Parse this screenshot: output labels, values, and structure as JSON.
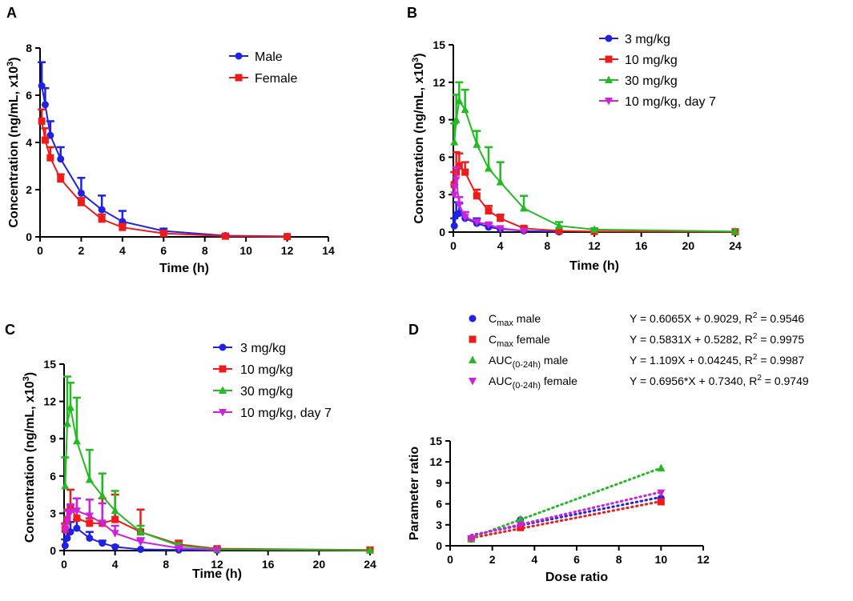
{
  "colors": {
    "blue": "#1f22e6",
    "red": "#ef1b1b",
    "green": "#22bb22",
    "magenta": "#cc22dd",
    "axis": "#000000"
  },
  "chart_data": [
    {
      "type": "line",
      "panel_label": "A",
      "xlabel": "Time (h)",
      "ylabel": "Concentration (ng/mL, x10",
      "ylabel_sup": "3",
      "ylabel_close": ")",
      "xlim": [
        0,
        14
      ],
      "ylim": [
        0,
        8
      ],
      "xticks": [
        0,
        2,
        4,
        6,
        8,
        10,
        12,
        14
      ],
      "yticks": [
        0,
        2,
        4,
        6,
        8
      ],
      "legend": "top-right",
      "series": [
        {
          "name": "Male",
          "color": "#1f22e6",
          "marker": "circle",
          "x": [
            0.083,
            0.25,
            0.5,
            1,
            2,
            3,
            4,
            6,
            9,
            12
          ],
          "y": [
            6.4,
            5.6,
            4.3,
            3.3,
            1.85,
            1.15,
            0.65,
            0.25,
            0.05,
            0.02
          ],
          "err": [
            1.0,
            0.7,
            0.6,
            0.5,
            0.65,
            0.6,
            0.45,
            0.1,
            0.05,
            0.02
          ]
        },
        {
          "name": "Female",
          "color": "#ef1b1b",
          "marker": "square",
          "x": [
            0.083,
            0.25,
            0.5,
            1,
            2,
            3,
            4,
            6,
            9,
            12
          ],
          "y": [
            4.9,
            4.1,
            3.35,
            2.45,
            1.45,
            0.75,
            0.4,
            0.15,
            0.03,
            0.01
          ],
          "err": [
            0.5,
            0.5,
            0.45,
            0.2,
            0.2,
            0.2,
            0.15,
            0.05,
            0.02,
            0.01
          ]
        }
      ]
    },
    {
      "type": "line",
      "panel_label": "B",
      "xlabel": "Time (h)",
      "ylabel": "Concentration (ng/mL, x10",
      "ylabel_sup": "3",
      "ylabel_close": ")",
      "xlim": [
        0,
        24
      ],
      "ylim": [
        0,
        15
      ],
      "xticks": [
        0,
        4,
        8,
        12,
        16,
        20,
        24
      ],
      "yticks": [
        0,
        3,
        6,
        9,
        12,
        15
      ],
      "legend": "top-right",
      "series": [
        {
          "name": "3 mg/kg",
          "color": "#1f22e6",
          "marker": "circle",
          "x": [
            0.083,
            0.25,
            0.5,
            1,
            2,
            3,
            4,
            6,
            9
          ],
          "y": [
            0.5,
            1.4,
            1.5,
            1.1,
            0.7,
            0.4,
            0.25,
            0.1,
            0.02
          ],
          "err": [
            0.6,
            1.0,
            0.8,
            0.5,
            0.4,
            0.1,
            0.05,
            0.02,
            0.01
          ]
        },
        {
          "name": "10 mg/kg",
          "color": "#ef1b1b",
          "marker": "square",
          "x": [
            0.083,
            0.25,
            0.5,
            1,
            2,
            3,
            4,
            6,
            9,
            12,
            24
          ],
          "y": [
            3.8,
            4.8,
            5.3,
            4.8,
            2.9,
            1.7,
            1.1,
            0.3,
            0.1,
            0.05,
            0.02
          ],
          "err": [
            1.0,
            1.6,
            1.0,
            0.8,
            0.5,
            0.4,
            0.3,
            0.1,
            0.05,
            0.02,
            0.01
          ]
        },
        {
          "name": "30 mg/kg",
          "color": "#22bb22",
          "marker": "triangle-up",
          "x": [
            0.083,
            0.25,
            0.5,
            1,
            2,
            3,
            4,
            6,
            9,
            12,
            24
          ],
          "y": [
            7.2,
            9.0,
            10.5,
            9.8,
            7.0,
            5.1,
            4.0,
            1.9,
            0.5,
            0.2,
            0.05
          ],
          "err": [
            1.5,
            2.0,
            1.5,
            1.6,
            1.1,
            1.7,
            1.6,
            1.0,
            0.3,
            0.1,
            0.02
          ]
        },
        {
          "name": "10 mg/kg, day 7",
          "color": "#cc22dd",
          "marker": "triangle-down",
          "x": [
            0.083,
            0.25,
            0.5,
            1,
            2,
            3,
            4,
            6
          ],
          "y": [
            3.0,
            4.2,
            2.2,
            1.2,
            0.8,
            0.6,
            0.3,
            0.1
          ],
          "err": [
            0.8,
            1.0,
            0.6,
            0.4,
            0.2,
            0.1,
            0.05,
            0.02
          ]
        }
      ]
    },
    {
      "type": "line",
      "panel_label": "C",
      "xlabel": "Time (h)",
      "ylabel": "Concentration (ng/mL, x10",
      "ylabel_sup": "3",
      "ylabel_close": ")",
      "xlim": [
        0,
        24
      ],
      "ylim": [
        0,
        15
      ],
      "xticks": [
        0,
        4,
        8,
        12,
        16,
        20,
        24
      ],
      "yticks": [
        0,
        3,
        6,
        9,
        12,
        15
      ],
      "legend": "top-right",
      "series": [
        {
          "name": "3 mg/kg",
          "color": "#1f22e6",
          "marker": "circle",
          "x": [
            0.083,
            0.25,
            0.5,
            1,
            2,
            3,
            4,
            6,
            9,
            12
          ],
          "y": [
            0.4,
            1.0,
            1.5,
            1.8,
            1.0,
            0.6,
            0.3,
            0.1,
            0.05,
            0.02
          ],
          "err": [
            0.5,
            0.7,
            0.8,
            0.7,
            0.5,
            0.2,
            0.1,
            0.05,
            0.02,
            0.01
          ]
        },
        {
          "name": "10 mg/kg",
          "color": "#ef1b1b",
          "marker": "square",
          "x": [
            0.083,
            0.25,
            0.5,
            1,
            2,
            3,
            4,
            6,
            9,
            12,
            24
          ],
          "y": [
            1.7,
            2.5,
            3.5,
            2.6,
            2.2,
            2.2,
            2.5,
            1.5,
            0.5,
            0.15,
            0.05
          ],
          "err": [
            0.5,
            0.8,
            1.4,
            1.6,
            0.4,
            2.0,
            2.0,
            1.8,
            0.3,
            0.1,
            0.02
          ]
        },
        {
          "name": "30 mg/kg",
          "color": "#22bb22",
          "marker": "triangle-up",
          "x": [
            0.083,
            0.25,
            0.5,
            1,
            2,
            3,
            4,
            6,
            9,
            12,
            24
          ],
          "y": [
            5.2,
            10.2,
            11.5,
            8.8,
            5.7,
            4.4,
            3.2,
            1.5,
            0.4,
            0.1,
            0.02
          ],
          "err": [
            2.3,
            3.8,
            2.0,
            3.5,
            2.4,
            1.8,
            1.6,
            0.5,
            0.2,
            0.05,
            0.01
          ]
        },
        {
          "name": "10 mg/kg, day 7",
          "color": "#cc22dd",
          "marker": "triangle-down",
          "x": [
            0.083,
            0.25,
            0.5,
            1,
            2,
            3,
            4,
            6,
            9,
            12
          ],
          "y": [
            1.6,
            2.4,
            3.1,
            3.2,
            2.8,
            2.2,
            1.4,
            0.7,
            0.2,
            0.05
          ],
          "err": [
            0.5,
            0.8,
            0.6,
            1.0,
            1.3,
            1.6,
            0.6,
            0.3,
            0.1,
            0.02
          ]
        }
      ]
    },
    {
      "type": "scatter",
      "panel_label": "D",
      "xlabel": "Dose ratio",
      "ylabel": "Parameter ratio",
      "xlim": [
        0,
        12
      ],
      "ylim": [
        0,
        15
      ],
      "xticks": [
        0,
        2,
        4,
        6,
        8,
        10,
        12
      ],
      "yticks": [
        0,
        3,
        6,
        9,
        12,
        15
      ],
      "legend": "top",
      "series": [
        {
          "name_main": "C",
          "name_sub": "max",
          "name_tail": " male",
          "equation": "Y = 0.6065X + 0.9029, R",
          "eq_sup": "2",
          "eq_tail": " = 0.9546",
          "color": "#1f22e6",
          "marker": "circle",
          "x": [
            1,
            3.33,
            10
          ],
          "y": [
            1.0,
            3.7,
            6.8
          ],
          "slope": 0.6065,
          "intercept": 0.9029
        },
        {
          "name_main": "C",
          "name_sub": "max",
          "name_tail": " female",
          "equation": "Y = 0.5831X + 0.5282, R",
          "eq_sup": "2",
          "eq_tail": " = 0.9975",
          "color": "#ef1b1b",
          "marker": "square",
          "x": [
            1,
            3.33,
            10
          ],
          "y": [
            1.0,
            2.6,
            6.3
          ],
          "slope": 0.5831,
          "intercept": 0.5282
        },
        {
          "name_main": "AUC",
          "name_sub": "(0-24h)",
          "name_tail": " male",
          "equation": "Y = 1.109X + 0.04245, R",
          "eq_sup": "2",
          "eq_tail": " = 0.9987",
          "color": "#22bb22",
          "marker": "triangle-up",
          "x": [
            1,
            3.33,
            10
          ],
          "y": [
            1.0,
            3.8,
            11.1
          ],
          "slope": 1.109,
          "intercept": 0.04245
        },
        {
          "name_main": "AUC",
          "name_sub": "(0-24h)",
          "name_tail": " female",
          "equation": "Y = 0.6956*X + 0.7340, R",
          "eq_sup": "2",
          "eq_tail": " = 0.9749",
          "color": "#cc22dd",
          "marker": "triangle-down",
          "x": [
            1,
            3.33,
            10
          ],
          "y": [
            1.0,
            3.0,
            7.6
          ],
          "slope": 0.6956,
          "intercept": 0.734
        }
      ]
    }
  ]
}
